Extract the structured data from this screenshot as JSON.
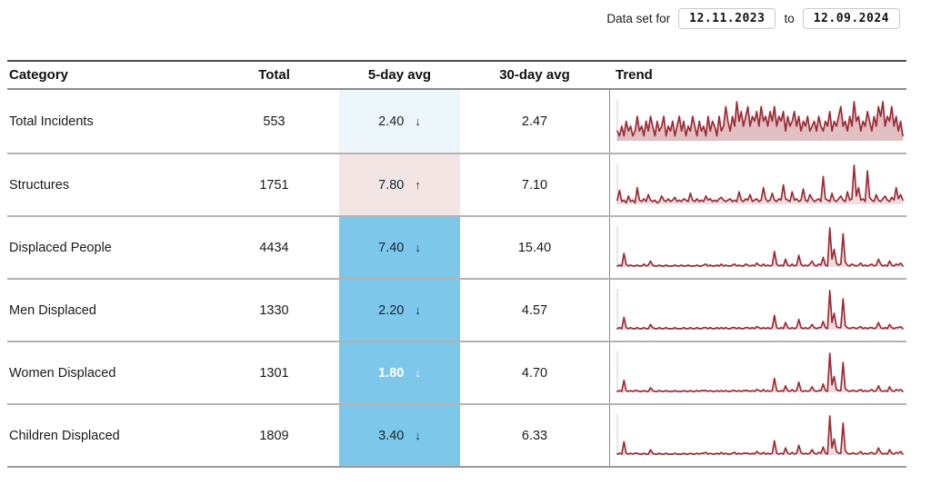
{
  "header": {
    "dataset_label": "Data set for",
    "date_from": "12.11.2023",
    "to_label": "to",
    "date_to": "12.09.2024"
  },
  "colors": {
    "spark_line": "#9b2c35",
    "spark_fill": "#9b2c35",
    "spark_axis": "#dedede",
    "highlight_blue": "#7dc8ea",
    "highlight_pink": "#f3e5e3",
    "highlight_ice": "#edf6fa"
  },
  "table": {
    "columns": {
      "category": "Category",
      "total": "Total",
      "avg5": "5-day avg",
      "avg30": "30-day avg",
      "trend": "Trend"
    },
    "rows": [
      {
        "category": "Total Incidents",
        "total": "553",
        "avg5": "2.40",
        "avg5_arrow": "↓",
        "avg5_style": "background:#edf6fa;color:#17262e",
        "avg30": "2.47",
        "trend_fill_opacity": 0.3,
        "trend": [
          2,
          1,
          3,
          1,
          4,
          2,
          3,
          1,
          2,
          5,
          2,
          3,
          1,
          4,
          2,
          5,
          3,
          1,
          4,
          2,
          3,
          5,
          1,
          3,
          2,
          4,
          1,
          3,
          5,
          2,
          4,
          1,
          3,
          2,
          5,
          3,
          1,
          4,
          2,
          3,
          1,
          5,
          2,
          4,
          3,
          1,
          5,
          2,
          3,
          7,
          4,
          2,
          5,
          3,
          8,
          4,
          6,
          3,
          5,
          7,
          3,
          5,
          4,
          6,
          3,
          7,
          4,
          5,
          3,
          6,
          4,
          7,
          3,
          5,
          4,
          6,
          2,
          5,
          3,
          4,
          6,
          3,
          5,
          2,
          4,
          3,
          5,
          2,
          3,
          4,
          2,
          5,
          3,
          2,
          4,
          3,
          6,
          2,
          4,
          3,
          5,
          7,
          3,
          4,
          2,
          5,
          3,
          8,
          4,
          5,
          2,
          4,
          3,
          6,
          4,
          2,
          5,
          3,
          7,
          5,
          8,
          3,
          5,
          4,
          7,
          3,
          5,
          2,
          4,
          1
        ]
      },
      {
        "category": "Structures",
        "total": "1751",
        "avg5": "7.80",
        "avg5_arrow": "↑",
        "avg5_style": "background:#f3e5e3;color:#17262e",
        "avg30": "7.10",
        "trend_fill_opacity": 0.16,
        "trend": [
          3,
          10,
          2,
          3,
          1,
          6,
          2,
          3,
          1,
          12,
          3,
          2,
          4,
          2,
          7,
          3,
          2,
          3,
          1,
          2,
          6,
          3,
          2,
          4,
          2,
          3,
          5,
          2,
          3,
          2,
          4,
          3,
          2,
          8,
          3,
          2,
          4,
          2,
          3,
          2,
          6,
          3,
          4,
          2,
          3,
          2,
          4,
          5,
          3,
          2,
          3,
          4,
          2,
          3,
          2,
          9,
          3,
          2,
          4,
          3,
          7,
          2,
          3,
          4,
          2,
          3,
          12,
          4,
          2,
          3,
          8,
          3,
          2,
          4,
          3,
          14,
          4,
          3,
          2,
          9,
          3,
          4,
          2,
          3,
          11,
          3,
          2,
          7,
          4,
          2,
          3,
          4,
          2,
          20,
          4,
          3,
          2,
          8,
          3,
          2,
          4,
          6,
          3,
          2,
          9,
          3,
          4,
          28,
          6,
          12,
          3,
          4,
          2,
          24,
          5,
          3,
          2,
          7,
          3,
          2,
          4,
          6,
          3,
          2,
          5,
          3,
          12,
          4,
          7,
          3
        ]
      },
      {
        "category": "Displaced People",
        "total": "4434",
        "avg5": "7.40",
        "avg5_arrow": "↓",
        "avg5_style": "background:#7dc8ea;color:#17262e",
        "avg30": "15.40",
        "trend_fill_opacity": 0.16,
        "trend": [
          1,
          2,
          1,
          14,
          3,
          1,
          2,
          1,
          1,
          2,
          1,
          1,
          3,
          1,
          2,
          6,
          2,
          1,
          1,
          2,
          1,
          1,
          2,
          1,
          1,
          1,
          2,
          1,
          1,
          2,
          1,
          1,
          2,
          1,
          1,
          1,
          2,
          1,
          1,
          2,
          3,
          1,
          2,
          1,
          1,
          2,
          1,
          3,
          1,
          2,
          1,
          1,
          2,
          3,
          1,
          2,
          1,
          1,
          3,
          2,
          1,
          2,
          1,
          4,
          2,
          1,
          3,
          1,
          2,
          1,
          2,
          16,
          3,
          1,
          2,
          1,
          8,
          2,
          1,
          3,
          1,
          2,
          12,
          3,
          1,
          2,
          1,
          3,
          6,
          2,
          1,
          3,
          2,
          10,
          2,
          1,
          40,
          8,
          18,
          4,
          2,
          3,
          34,
          5,
          2,
          1,
          3,
          2,
          1,
          2,
          4,
          1,
          2,
          1,
          2,
          3,
          1,
          2,
          8,
          3,
          1,
          2,
          1,
          6,
          2,
          1,
          3,
          2,
          4,
          1
        ]
      },
      {
        "category": "Men Displaced",
        "total": "1330",
        "avg5": "2.20",
        "avg5_arrow": "↓",
        "avg5_style": "background:#7dc8ea;color:#17262e",
        "avg30": "4.57",
        "trend_fill_opacity": 0.16,
        "trend": [
          1,
          2,
          1,
          12,
          2,
          1,
          2,
          1,
          1,
          2,
          1,
          1,
          2,
          1,
          1,
          5,
          2,
          1,
          1,
          2,
          1,
          1,
          2,
          1,
          1,
          1,
          2,
          1,
          1,
          1,
          2,
          1,
          1,
          2,
          1,
          1,
          2,
          1,
          1,
          2,
          2,
          1,
          2,
          1,
          1,
          2,
          1,
          2,
          1,
          2,
          1,
          1,
          2,
          2,
          1,
          2,
          1,
          1,
          2,
          2,
          1,
          2,
          1,
          3,
          2,
          1,
          2,
          1,
          2,
          1,
          2,
          14,
          2,
          1,
          2,
          1,
          7,
          2,
          1,
          2,
          1,
          2,
          10,
          2,
          1,
          2,
          1,
          2,
          5,
          2,
          1,
          2,
          2,
          8,
          2,
          1,
          38,
          7,
          16,
          3,
          2,
          2,
          30,
          4,
          2,
          1,
          2,
          2,
          1,
          2,
          3,
          1,
          2,
          1,
          2,
          2,
          1,
          2,
          7,
          2,
          1,
          2,
          1,
          5,
          2,
          1,
          2,
          2,
          3,
          1
        ]
      },
      {
        "category": "Women Displaced",
        "total": "1301",
        "avg5": "1.80",
        "avg5_arrow": "↓",
        "avg5_style": "background:#7dc8ea;color:#ffffff;font-weight:bold",
        "avg30": "4.70",
        "trend_fill_opacity": 0.16,
        "trend": [
          1,
          2,
          1,
          13,
          2,
          1,
          2,
          1,
          2,
          2,
          1,
          1,
          2,
          1,
          1,
          5,
          2,
          1,
          1,
          2,
          1,
          1,
          2,
          1,
          1,
          1,
          2,
          1,
          1,
          1,
          2,
          1,
          1,
          2,
          1,
          1,
          2,
          1,
          2,
          2,
          2,
          1,
          2,
          1,
          1,
          2,
          1,
          2,
          1,
          2,
          1,
          1,
          2,
          2,
          1,
          2,
          1,
          2,
          2,
          2,
          1,
          2,
          1,
          3,
          2,
          1,
          3,
          1,
          2,
          1,
          2,
          15,
          2,
          1,
          2,
          1,
          7,
          2,
          1,
          3,
          1,
          2,
          11,
          2,
          1,
          2,
          1,
          2,
          6,
          2,
          1,
          2,
          2,
          9,
          2,
          1,
          42,
          8,
          17,
          3,
          2,
          2,
          32,
          4,
          2,
          1,
          2,
          2,
          1,
          2,
          3,
          1,
          2,
          1,
          2,
          3,
          1,
          2,
          7,
          2,
          1,
          2,
          1,
          6,
          2,
          1,
          3,
          2,
          3,
          1
        ]
      },
      {
        "category": "Children Displaced",
        "total": "1809",
        "avg5": "3.40",
        "avg5_arrow": "↓",
        "avg5_style": "background:#7dc8ea;color:#17262e",
        "avg30": "6.33",
        "trend_fill_opacity": 0.16,
        "trend": [
          1,
          2,
          1,
          15,
          2,
          1,
          2,
          1,
          2,
          2,
          1,
          1,
          2,
          1,
          1,
          6,
          2,
          1,
          1,
          2,
          1,
          1,
          2,
          1,
          1,
          1,
          2,
          1,
          1,
          1,
          2,
          1,
          1,
          2,
          1,
          1,
          2,
          1,
          2,
          2,
          3,
          1,
          2,
          1,
          1,
          2,
          1,
          3,
          1,
          2,
          1,
          1,
          2,
          3,
          1,
          2,
          1,
          2,
          2,
          2,
          1,
          2,
          1,
          4,
          2,
          1,
          3,
          1,
          2,
          1,
          2,
          16,
          2,
          1,
          2,
          1,
          8,
          2,
          1,
          3,
          1,
          2,
          11,
          3,
          1,
          2,
          1,
          2,
          6,
          2,
          1,
          3,
          2,
          9,
          2,
          1,
          44,
          8,
          18,
          4,
          2,
          2,
          36,
          5,
          2,
          1,
          2,
          2,
          1,
          2,
          4,
          1,
          2,
          1,
          2,
          3,
          1,
          2,
          8,
          3,
          1,
          2,
          1,
          6,
          2,
          1,
          3,
          2,
          4,
          1
        ]
      }
    ]
  }
}
